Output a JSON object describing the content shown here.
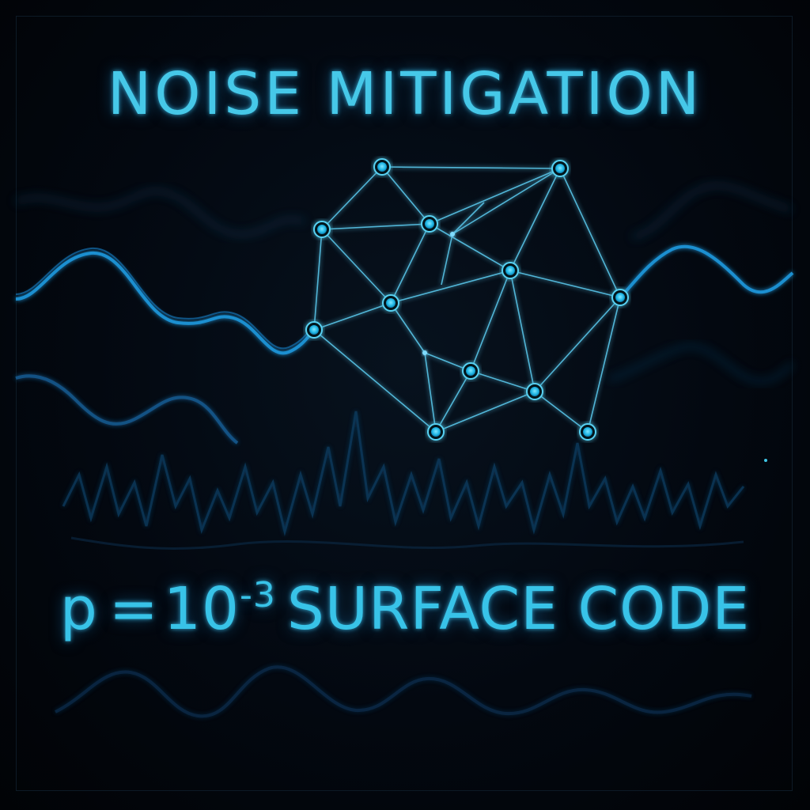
{
  "title": "NOISE MITIGATION",
  "formula": {
    "variable": "p",
    "equals": "=",
    "base": "10",
    "exponent": "-3",
    "label": "SURFACE CODE"
  },
  "colors": {
    "background": "#02060c",
    "accent": "#3fc6e6",
    "node": "#1fb6e4",
    "wave": "#1a8fd0"
  },
  "graphics": {
    "network": "qubit-lattice-graph",
    "waves": "noise-waveforms"
  }
}
